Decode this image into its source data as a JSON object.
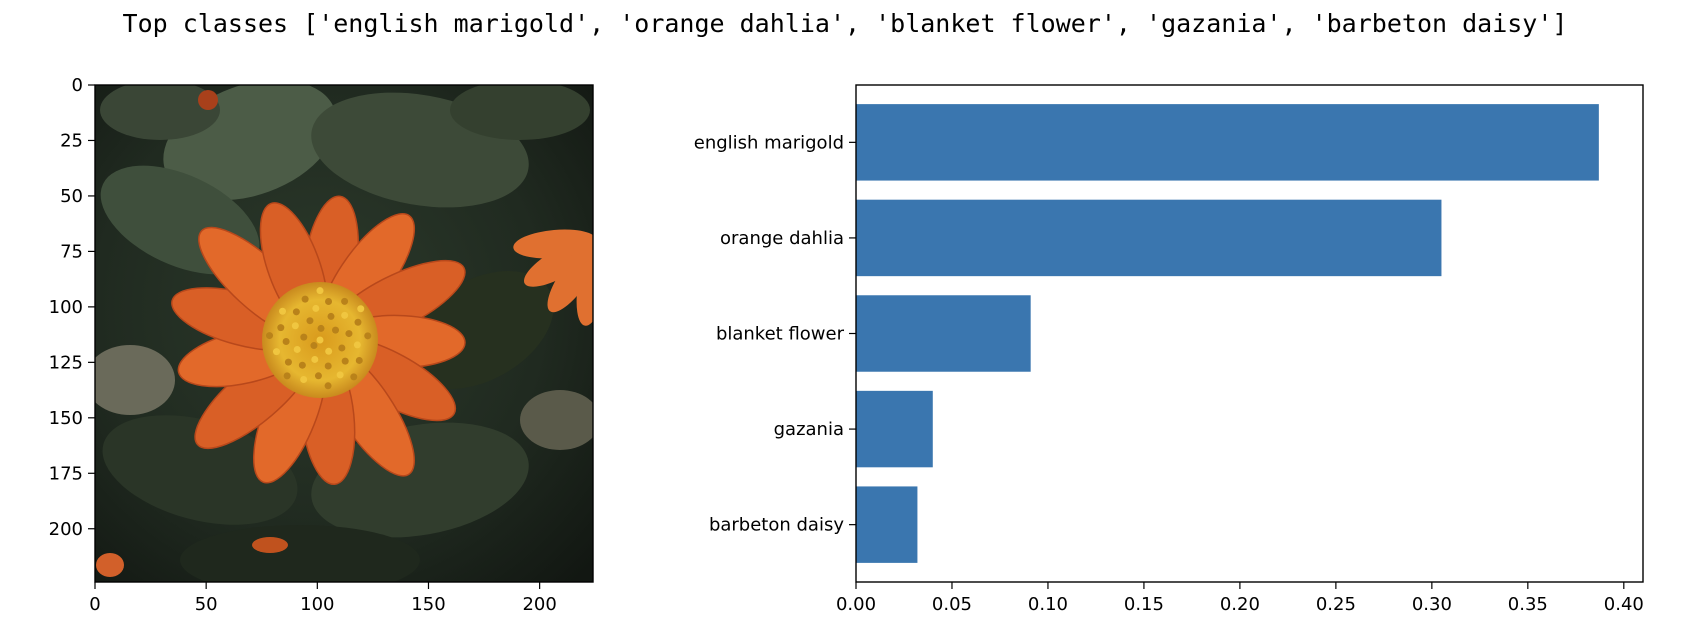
{
  "figure": {
    "title": "Top classes ['english marigold', 'orange dahlia', 'blanket flower', 'gazania', 'barbeton daisy']"
  },
  "chart_data": [
    {
      "type": "image",
      "subject": "orange flower with yellow center on dark green leaves",
      "xlim": [
        0,
        224
      ],
      "ylim": [
        224,
        0
      ],
      "xticks": [
        "0",
        "50",
        "100",
        "150",
        "200"
      ],
      "yticks": [
        "0",
        "25",
        "50",
        "75",
        "100",
        "125",
        "150",
        "175",
        "200"
      ],
      "colors": {
        "petal": "#e2692a",
        "petal_dark": "#b8481b",
        "center": "#e4b22c",
        "leaf": "#2f3b2c",
        "background": "#1d241c"
      }
    },
    {
      "type": "bar",
      "orientation": "horizontal",
      "categories": [
        "english marigold",
        "orange dahlia",
        "blanket flower",
        "gazania",
        "barbeton daisy"
      ],
      "values": [
        0.387,
        0.305,
        0.091,
        0.04,
        0.032
      ],
      "xlim": [
        0,
        0.41
      ],
      "xticks": [
        "0.00",
        "0.05",
        "0.10",
        "0.15",
        "0.20",
        "0.25",
        "0.30",
        "0.35",
        "0.40"
      ],
      "bar_color": "#3a76af",
      "grid": false
    }
  ]
}
